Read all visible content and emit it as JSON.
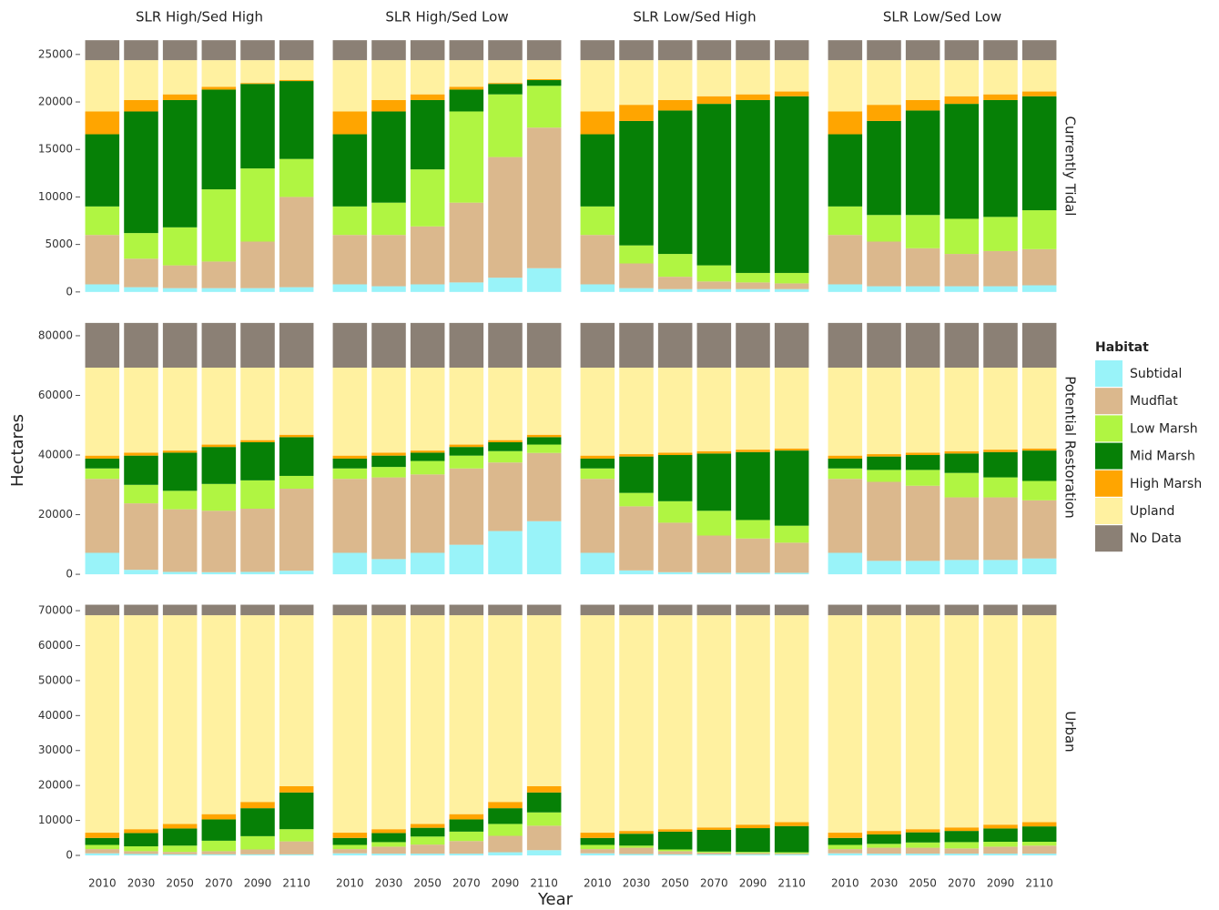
{
  "chart_data": {
    "type": "stacked-bar",
    "x_label": "Year",
    "y_label": "Hectares",
    "legend_title": "Habitat",
    "categories": [
      "2010",
      "2030",
      "2050",
      "2070",
      "2090",
      "2110"
    ],
    "columns": [
      "SLR High/Sed High",
      "SLR High/Sed Low",
      "SLR Low/Sed High",
      "SLR Low/Sed Low"
    ],
    "series": [
      {
        "name": "Subtidal",
        "color": "#99f3f9"
      },
      {
        "name": "Mudflat",
        "color": "#dbb88d"
      },
      {
        "name": "Low Marsh",
        "color": "#b0f542"
      },
      {
        "name": "Mid Marsh",
        "color": "#068006"
      },
      {
        "name": "High Marsh",
        "color": "#ffa500"
      },
      {
        "name": "Upland",
        "color": "#fff1a0"
      },
      {
        "name": "No Data",
        "color": "#8b8075"
      }
    ],
    "rows": [
      {
        "label": "Currently Tidal",
        "ylim": [
          -400,
          26900
        ],
        "yticks": [
          0,
          5000,
          10000,
          15000,
          20000,
          25000
        ],
        "panels": [
          {
            "values": [
              [
                800,
                5200,
                3000,
                7600,
                2400,
                5400,
                2100
              ],
              [
                500,
                3000,
                2700,
                12800,
                1200,
                4200,
                2100
              ],
              [
                400,
                2400,
                4000,
                13400,
                600,
                3600,
                2100
              ],
              [
                400,
                2800,
                7600,
                10500,
                300,
                2800,
                2100
              ],
              [
                400,
                4900,
                7700,
                8900,
                100,
                2400,
                2100
              ],
              [
                500,
                9500,
                4000,
                8200,
                100,
                2100,
                2100
              ]
            ]
          },
          {
            "values": [
              [
                800,
                5200,
                3000,
                7600,
                2400,
                5400,
                2100
              ],
              [
                600,
                5400,
                3400,
                9600,
                1200,
                4200,
                2100
              ],
              [
                800,
                6100,
                6000,
                7300,
                600,
                3600,
                2100
              ],
              [
                1000,
                8400,
                9600,
                2300,
                300,
                2800,
                2100
              ],
              [
                1500,
                12700,
                6600,
                1100,
                100,
                2400,
                2100
              ],
              [
                2500,
                14800,
                4400,
                600,
                100,
                2000,
                2100
              ]
            ]
          },
          {
            "values": [
              [
                800,
                5200,
                3000,
                7600,
                2400,
                5400,
                2100
              ],
              [
                400,
                2600,
                1900,
                13100,
                1700,
                4700,
                2100
              ],
              [
                300,
                1300,
                2400,
                15100,
                1100,
                4200,
                2100
              ],
              [
                300,
                800,
                1700,
                17000,
                800,
                3800,
                2100
              ],
              [
                300,
                700,
                1000,
                18200,
                600,
                3600,
                2100
              ],
              [
                300,
                600,
                1100,
                18600,
                500,
                3300,
                2100
              ]
            ]
          },
          {
            "values": [
              [
                800,
                5200,
                3000,
                7600,
                2400,
                5400,
                2100
              ],
              [
                600,
                4700,
                2800,
                9900,
                1700,
                4700,
                2100
              ],
              [
                600,
                4000,
                3500,
                11000,
                1100,
                4200,
                2100
              ],
              [
                600,
                3400,
                3700,
                12100,
                800,
                3800,
                2100
              ],
              [
                600,
                3700,
                3600,
                12300,
                600,
                3600,
                2100
              ],
              [
                700,
                3800,
                4100,
                12000,
                500,
                3300,
                2100
              ]
            ]
          }
        ]
      },
      {
        "label": "Potential Restoration",
        "ylim": [
          -1500,
          86700
        ],
        "yticks": [
          0,
          20000,
          40000,
          60000,
          80000
        ],
        "panels": [
          {
            "values": [
              [
                7200,
                24800,
                3500,
                3300,
                1000,
                29500,
                15000
              ],
              [
                1500,
                22300,
                6200,
                9800,
                1000,
                28500,
                15000
              ],
              [
                800,
                21000,
                6200,
                12800,
                700,
                27800,
                15000
              ],
              [
                700,
                20600,
                9000,
                12400,
                800,
                25800,
                15000
              ],
              [
                800,
                21200,
                9500,
                12800,
                700,
                24300,
                15000
              ],
              [
                1200,
                27500,
                4300,
                13000,
                800,
                22500,
                15000
              ]
            ]
          },
          {
            "values": [
              [
                7200,
                24800,
                3500,
                3300,
                1000,
                29500,
                15000
              ],
              [
                5100,
                27400,
                3500,
                3800,
                1000,
                28500,
                15000
              ],
              [
                7200,
                26300,
                4500,
                2800,
                700,
                27800,
                15000
              ],
              [
                9900,
                25600,
                4300,
                2900,
                800,
                25800,
                15000
              ],
              [
                14500,
                23000,
                3800,
                3000,
                700,
                24300,
                15000
              ],
              [
                17800,
                22900,
                2800,
                2500,
                800,
                22500,
                15000
              ]
            ]
          },
          {
            "values": [
              [
                7200,
                24800,
                3500,
                3300,
                1000,
                29500,
                15000
              ],
              [
                1300,
                21500,
                4500,
                12200,
                800,
                29000,
                15000
              ],
              [
                700,
                16600,
                7200,
                15500,
                800,
                28500,
                15000
              ],
              [
                500,
                12500,
                8300,
                19200,
                800,
                28000,
                15000
              ],
              [
                500,
                11500,
                6200,
                22800,
                800,
                27500,
                15000
              ],
              [
                500,
                10100,
                5700,
                25200,
                700,
                27100,
                15000
              ]
            ]
          },
          {
            "values": [
              [
                7200,
                24800,
                3500,
                3300,
                1000,
                29500,
                15000
              ],
              [
                4500,
                26500,
                4000,
                4500,
                800,
                29000,
                15000
              ],
              [
                4500,
                25200,
                5300,
                5000,
                800,
                28500,
                15000
              ],
              [
                4800,
                21000,
                8200,
                6500,
                800,
                28000,
                15000
              ],
              [
                4800,
                21000,
                6700,
                8500,
                800,
                27500,
                15000
              ],
              [
                5300,
                19500,
                6500,
                10200,
                700,
                27100,
                15000
              ]
            ]
          }
        ]
      },
      {
        "label": "Urban",
        "ylim": [
          -2600,
          73400
        ],
        "yticks": [
          0,
          10000,
          20000,
          30000,
          40000,
          50000,
          60000,
          70000
        ],
        "panels": [
          {
            "values": [
              [
                600,
                1200,
                1200,
                2000,
                1500,
                62200,
                3000
              ],
              [
                400,
                800,
                1400,
                3800,
                1100,
                61200,
                3000
              ],
              [
                300,
                700,
                1800,
                4900,
                1300,
                59700,
                3000
              ],
              [
                300,
                900,
                3000,
                6100,
                1500,
                56900,
                3000
              ],
              [
                300,
                1400,
                3800,
                8000,
                1800,
                53400,
                3000
              ],
              [
                300,
                3700,
                3500,
                10500,
                1800,
                48900,
                3000
              ]
            ]
          },
          {
            "values": [
              [
                600,
                1200,
                1200,
                2000,
                1500,
                62200,
                3000
              ],
              [
                500,
                2000,
                1300,
                2600,
                1100,
                61200,
                3000
              ],
              [
                500,
                2600,
                2300,
                2500,
                1100,
                59700,
                3000
              ],
              [
                500,
                3600,
                2700,
                3500,
                1500,
                56900,
                3000
              ],
              [
                900,
                4700,
                3400,
                4500,
                1800,
                53400,
                3000
              ],
              [
                1500,
                7000,
                3800,
                5700,
                1800,
                48900,
                3000
              ]
            ]
          },
          {
            "values": [
              [
                600,
                1200,
                1200,
                2000,
                1500,
                62200,
                3000
              ],
              [
                400,
                1800,
                600,
                3400,
                800,
                61700,
                3000
              ],
              [
                300,
                900,
                500,
                5100,
                700,
                61200,
                3000
              ],
              [
                300,
                500,
                300,
                6200,
                700,
                60700,
                3000
              ],
              [
                300,
                400,
                300,
                6800,
                1000,
                59900,
                3000
              ],
              [
                300,
                300,
                300,
                7500,
                1100,
                59200,
                3000
              ]
            ]
          },
          {
            "values": [
              [
                600,
                1200,
                1200,
                2000,
                1500,
                62200,
                3000
              ],
              [
                500,
                1700,
                1100,
                2700,
                1000,
                61700,
                3000
              ],
              [
                500,
                1700,
                1500,
                2900,
                900,
                61200,
                3000
              ],
              [
                500,
                1500,
                1800,
                3200,
                1000,
                60700,
                3000
              ],
              [
                500,
                2000,
                1400,
                3800,
                1100,
                59900,
                3000
              ],
              [
                500,
                2300,
                1100,
                4400,
                1200,
                59200,
                3000
              ]
            ]
          }
        ]
      }
    ]
  }
}
